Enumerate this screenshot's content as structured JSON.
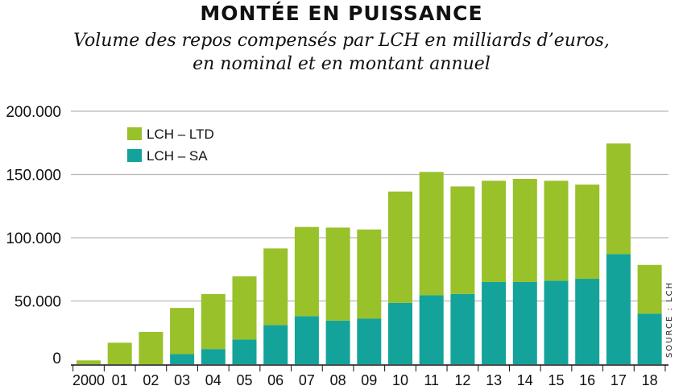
{
  "chart_data": {
    "type": "bar",
    "stacked": true,
    "title": "MONTÉE EN PUISSANCE",
    "subtitle_lines": [
      "Volume des repos compensés par LCH en milliards d’euros,",
      "en nominal et en montant annuel"
    ],
    "source": "SOURCE : LCH",
    "categories": [
      "2000",
      "01",
      "02",
      "03",
      "04",
      "05",
      "06",
      "07",
      "08",
      "09",
      "10",
      "11",
      "12",
      "13",
      "14",
      "15",
      "16",
      "17",
      "18"
    ],
    "series": [
      {
        "name": "LCH – SA",
        "color": "#13a39a",
        "values": [
          0,
          0,
          0,
          8000,
          12000,
          19500,
          31000,
          38000,
          34500,
          36000,
          48500,
          54500,
          55500,
          65000,
          65000,
          66000,
          67500,
          87000,
          40000
        ]
      },
      {
        "name": "LCH – LTD",
        "color": "#98c12a",
        "values": [
          3000,
          17000,
          25500,
          36500,
          43500,
          50000,
          60500,
          70500,
          73500,
          70500,
          88000,
          97500,
          85000,
          80000,
          81500,
          79000,
          74500,
          87500,
          38500
        ]
      }
    ],
    "ylim": [
      0,
      200000
    ],
    "yticks": [
      0,
      50000,
      100000,
      150000,
      200000
    ],
    "ytick_labels": [
      "0",
      "50.000",
      "100.000",
      "150.000",
      "200.000"
    ],
    "grid": true,
    "legend_position": "top-left"
  }
}
